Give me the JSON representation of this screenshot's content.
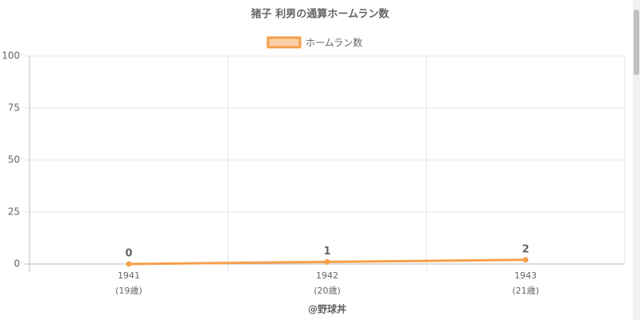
{
  "chart_data": {
    "type": "line",
    "title": "猪子 利男の通算ホームラン数",
    "x_axis_label": "@野球丼",
    "categories": [
      "1941",
      "1942",
      "1943"
    ],
    "category_sublabels": [
      "(19歳)",
      "(20歳)",
      "(21歳)"
    ],
    "series": [
      {
        "name": "ホームラン数",
        "color": "#f5a04b",
        "values": [
          0,
          1,
          2
        ]
      }
    ],
    "ylim": [
      0,
      100
    ],
    "yticks": [
      0,
      25,
      50,
      75,
      100
    ],
    "grid": true,
    "legend": "top"
  }
}
